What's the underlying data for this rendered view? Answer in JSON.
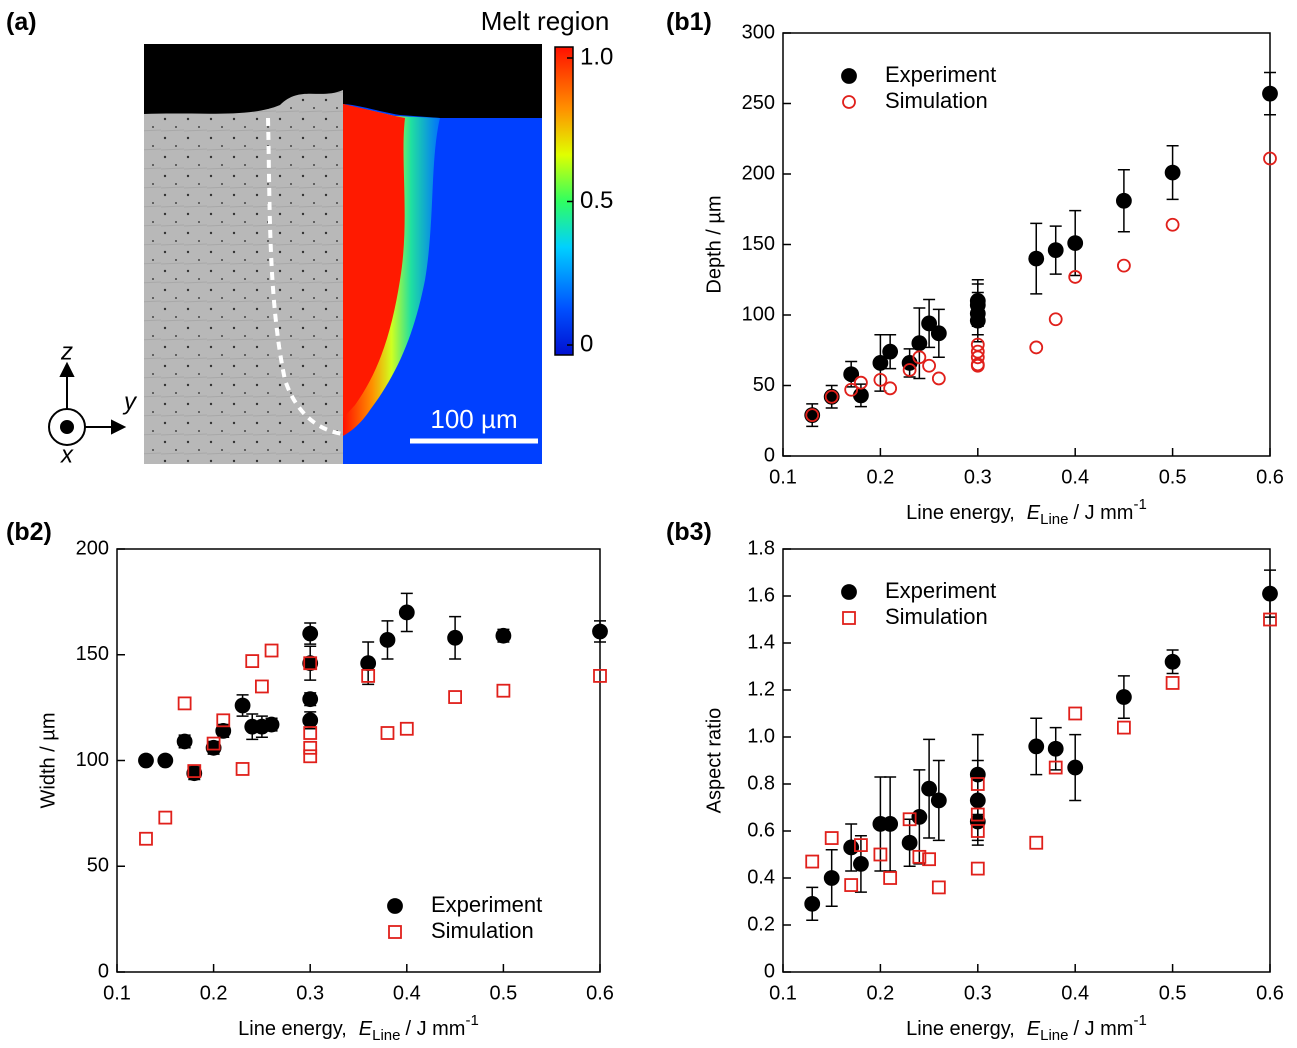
{
  "chart_data": [
    {
      "type": "image",
      "panel_label": "(a)",
      "colorbar_title": "Melt region",
      "colorbar_lim": [
        0,
        1
      ],
      "colorbar_ticks": [
        0,
        0.5,
        {
          "value": 1,
          "label": "1.0"
        }
      ],
      "scale_bar_label": "100 µm",
      "axis_labels": [
        "z",
        "y",
        "x"
      ]
    },
    {
      "type": "scatter",
      "panel_label": "(b1)",
      "xlabel": {
        "text": "Line energy,",
        "symbol": "E",
        "subscript": "Line",
        "unit": "/ J mm",
        "superscript": "-1"
      },
      "ylabel": "Depth / µm",
      "xlim": [
        0.1,
        0.6
      ],
      "ylim": [
        0,
        300
      ],
      "xticks": [
        0.1,
        0.2,
        0.3,
        0.4,
        0.5,
        0.6
      ],
      "yticks": [
        0,
        50,
        100,
        150,
        200,
        250,
        300
      ],
      "legend": "upper left",
      "series": [
        {
          "name": "Experiment",
          "color": "#000000",
          "marker": "filled-circle",
          "x": [
            0.13,
            0.15,
            0.17,
            0.18,
            0.2,
            0.21,
            0.23,
            0.24,
            0.25,
            0.26,
            0.3,
            0.3,
            0.3,
            0.3,
            0.36,
            0.38,
            0.4,
            0.45,
            0.5,
            0.6
          ],
          "values": [
            29,
            42,
            58,
            43,
            66,
            74,
            66,
            80,
            94,
            87,
            110,
            107,
            101,
            96,
            140,
            146,
            151,
            181,
            201,
            257
          ],
          "errors": [
            8,
            8,
            9,
            8,
            20,
            12,
            10,
            25,
            17,
            17,
            15,
            15,
            15,
            15,
            25,
            17,
            23,
            22,
            19,
            15
          ]
        },
        {
          "name": "Simulation",
          "color": "#e0201b",
          "marker": "open-circle",
          "x": [
            0.13,
            0.15,
            0.17,
            0.18,
            0.2,
            0.21,
            0.23,
            0.24,
            0.25,
            0.26,
            0.3,
            0.3,
            0.3,
            0.3,
            0.3,
            0.36,
            0.38,
            0.4,
            0.45,
            0.5,
            0.6
          ],
          "values": [
            29,
            42,
            47,
            52,
            54,
            48,
            61,
            70,
            64,
            55,
            79,
            74,
            70,
            65,
            64,
            77,
            97,
            127,
            135,
            164,
            211
          ]
        }
      ]
    },
    {
      "type": "scatter",
      "panel_label": "(b2)",
      "xlabel": {
        "text": "Line energy,",
        "symbol": "E",
        "subscript": "Line",
        "unit": "/ J mm",
        "superscript": "-1"
      },
      "ylabel": "Width / µm",
      "xlim": [
        0.1,
        0.6
      ],
      "ylim": [
        0,
        200
      ],
      "xticks": [
        0.1,
        0.2,
        0.3,
        0.4,
        0.5,
        0.6
      ],
      "yticks": [
        0,
        50,
        100,
        150,
        200
      ],
      "legend": "lower right",
      "series": [
        {
          "name": "Experiment",
          "color": "#000000",
          "marker": "filled-circle",
          "x": [
            0.13,
            0.15,
            0.17,
            0.18,
            0.2,
            0.21,
            0.23,
            0.24,
            0.25,
            0.26,
            0.3,
            0.3,
            0.3,
            0.3,
            0.36,
            0.38,
            0.4,
            0.45,
            0.5,
            0.6
          ],
          "values": [
            100,
            100,
            109,
            94,
            106,
            114,
            126,
            116,
            116,
            117,
            160,
            146,
            129,
            119,
            146,
            157,
            170,
            158,
            159,
            161
          ],
          "errors": [
            1,
            1,
            3,
            3,
            3,
            3,
            5,
            6,
            5,
            3,
            5,
            8,
            3,
            4,
            10,
            9,
            9,
            10,
            3,
            5
          ]
        },
        {
          "name": "Simulation",
          "color": "#e0201b",
          "marker": "open-square",
          "x": [
            0.13,
            0.15,
            0.17,
            0.18,
            0.2,
            0.21,
            0.23,
            0.24,
            0.25,
            0.26,
            0.3,
            0.3,
            0.3,
            0.3,
            0.36,
            0.38,
            0.4,
            0.45,
            0.5,
            0.6
          ],
          "values": [
            63,
            73,
            127,
            95,
            108,
            119,
            96,
            147,
            135,
            152,
            146,
            113,
            106,
            102,
            140,
            113,
            115,
            130,
            133,
            140
          ]
        }
      ]
    },
    {
      "type": "scatter",
      "panel_label": "(b3)",
      "xlabel": {
        "text": "Line energy,",
        "symbol": "E",
        "subscript": "Line",
        "unit": "/ J mm",
        "superscript": "-1"
      },
      "ylabel": "Aspect ratio",
      "xlim": [
        0.1,
        0.6
      ],
      "ylim": [
        0,
        1.8
      ],
      "xticks": [
        0.1,
        0.2,
        0.3,
        0.4,
        0.5,
        0.6
      ],
      "yticks": [
        0,
        0.2,
        0.4,
        0.6,
        0.8,
        {
          "value": 1,
          "label": "1.0"
        },
        1.2,
        1.4,
        1.6,
        1.8
      ],
      "legend": "upper left",
      "series": [
        {
          "name": "Experiment",
          "color": "#000000",
          "marker": "filled-circle",
          "x": [
            0.13,
            0.15,
            0.17,
            0.18,
            0.2,
            0.21,
            0.23,
            0.24,
            0.25,
            0.26,
            0.3,
            0.3,
            0.3,
            0.36,
            0.38,
            0.4,
            0.45,
            0.5,
            0.6
          ],
          "values": [
            0.29,
            0.4,
            0.53,
            0.46,
            0.63,
            0.63,
            0.55,
            0.66,
            0.78,
            0.73,
            0.84,
            0.73,
            0.64,
            0.96,
            0.95,
            0.87,
            1.17,
            1.32,
            1.61
          ],
          "errors": [
            0.07,
            0.12,
            0.1,
            0.12,
            0.2,
            0.2,
            0.1,
            0.2,
            0.21,
            0.17,
            0.17,
            0.17,
            0.1,
            0.12,
            0.09,
            0.14,
            0.09,
            0.05,
            0.1
          ]
        },
        {
          "name": "Simulation",
          "color": "#e0201b",
          "marker": "open-square",
          "x": [
            0.13,
            0.15,
            0.17,
            0.18,
            0.2,
            0.21,
            0.23,
            0.24,
            0.25,
            0.26,
            0.3,
            0.3,
            0.3,
            0.3,
            0.36,
            0.38,
            0.4,
            0.45,
            0.5,
            0.6
          ],
          "values": [
            0.47,
            0.57,
            0.37,
            0.54,
            0.5,
            0.4,
            0.65,
            0.49,
            0.48,
            0.36,
            0.8,
            0.67,
            0.6,
            0.44,
            0.55,
            0.87,
            1.1,
            1.04,
            1.23,
            1.5
          ]
        }
      ]
    }
  ]
}
